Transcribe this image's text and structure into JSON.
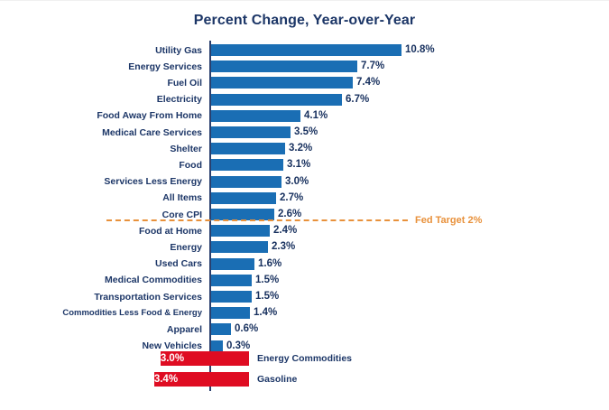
{
  "title": "Percent Change, Year-over-Year",
  "fed_target": {
    "label": "Fed Target 2%",
    "value": 2
  },
  "colors": {
    "navy_text": "#1c3667",
    "positive_bar": "#1a6eb4",
    "negative_bar": "#df0c22",
    "target_line": "#e8913b",
    "negative_value_text": "#ffffff",
    "background": "#ffffff"
  },
  "chart_data": {
    "type": "bar",
    "orientation": "horizontal",
    "title": "Percent Change, Year-over-Year",
    "xlabel": "",
    "ylabel": "",
    "grid": false,
    "legend": false,
    "categories": [
      "Utility Gas",
      "Energy Services",
      "Fuel Oil",
      "Electricity",
      "Food Away From Home",
      "Medical Care Services",
      "Shelter",
      "Food",
      "Services Less Energy",
      "All Items",
      "Core CPI",
      "Food at Home",
      "Energy",
      "Used Cars",
      "Medical Commodities",
      "Transportation Services",
      "Commodities Less Food & Energy",
      "Apparel",
      "New Vehicles",
      "Energy Commodities",
      "Gasoline"
    ],
    "values": [
      10.8,
      7.7,
      7.4,
      6.7,
      4.1,
      3.5,
      3.2,
      3.1,
      3.0,
      2.7,
      2.6,
      2.4,
      2.3,
      1.6,
      1.5,
      1.5,
      1.4,
      0.6,
      0.3,
      -3.0,
      -3.4
    ],
    "value_labels": [
      "10.8%",
      "7.7%",
      "7.4%",
      "6.7%",
      "4.1%",
      "3.5%",
      "3.2%",
      "3.1%",
      "3.0%",
      "2.7%",
      "2.6%",
      "2.4%",
      "2.3%",
      "1.6%",
      "1.5%",
      "1.5%",
      "1.4%",
      "0.6%",
      "0.3%",
      "-3.0%",
      "-3.4%"
    ],
    "annotation": {
      "label": "Fed Target 2%",
      "value": 2,
      "after_category": "Core CPI",
      "style": "dashed"
    }
  }
}
